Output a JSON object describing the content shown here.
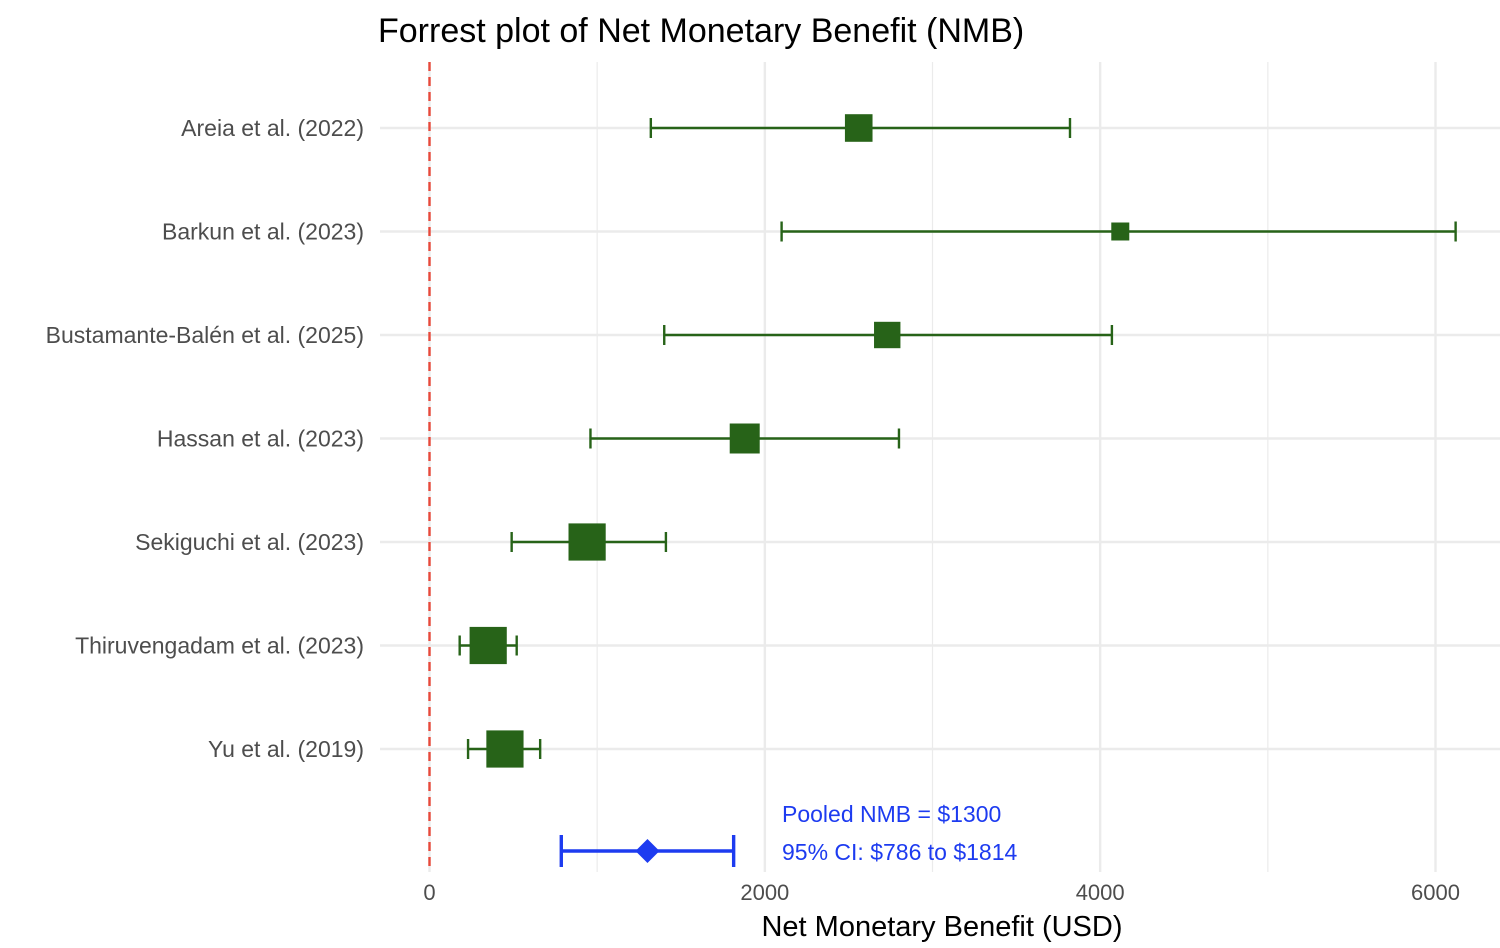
{
  "chart_data": {
    "type": "forest",
    "title": "Forrest plot of Net Monetary Benefit (NMB)",
    "xlabel": "Net Monetary Benefit (USD)",
    "ylabel": "",
    "xlim": [
      -500,
      6300
    ],
    "x_ticks": [
      0,
      2000,
      4000,
      6000
    ],
    "grid": true,
    "reference_line": {
      "x": 0,
      "color": "#e8493a",
      "style": "dashed"
    },
    "point_color": "#276318",
    "studies": [
      {
        "label": "Areia et al. (2022)",
        "estimate": 2560,
        "lower": 1320,
        "upper": 3820,
        "weight": 2.6
      },
      {
        "label": "Barkun et al. (2023)",
        "estimate": 4120,
        "lower": 2100,
        "upper": 6120,
        "weight": 1.0
      },
      {
        "label": "Bustamante-Balén et al. (2025)",
        "estimate": 2730,
        "lower": 1400,
        "upper": 4070,
        "weight": 2.4
      },
      {
        "label": "Hassan et al. (2023)",
        "estimate": 1880,
        "lower": 960,
        "upper": 2800,
        "weight": 3.0
      },
      {
        "label": "Sekiguchi et al. (2023)",
        "estimate": 940,
        "lower": 490,
        "upper": 1410,
        "weight": 4.2
      },
      {
        "label": "Thiruvengadam et al. (2023)",
        "estimate": 350,
        "lower": 180,
        "upper": 520,
        "weight": 4.2
      },
      {
        "label": "Yu et al. (2019)",
        "estimate": 450,
        "lower": 230,
        "upper": 660,
        "weight": 4.2
      }
    ],
    "pooled": {
      "estimate": 1300,
      "lower": 786,
      "upper": 1814,
      "color": "#1d3bf0",
      "text_line1": "Pooled NMB = $1300",
      "text_line2": "95% CI: $786 to $1814"
    }
  }
}
